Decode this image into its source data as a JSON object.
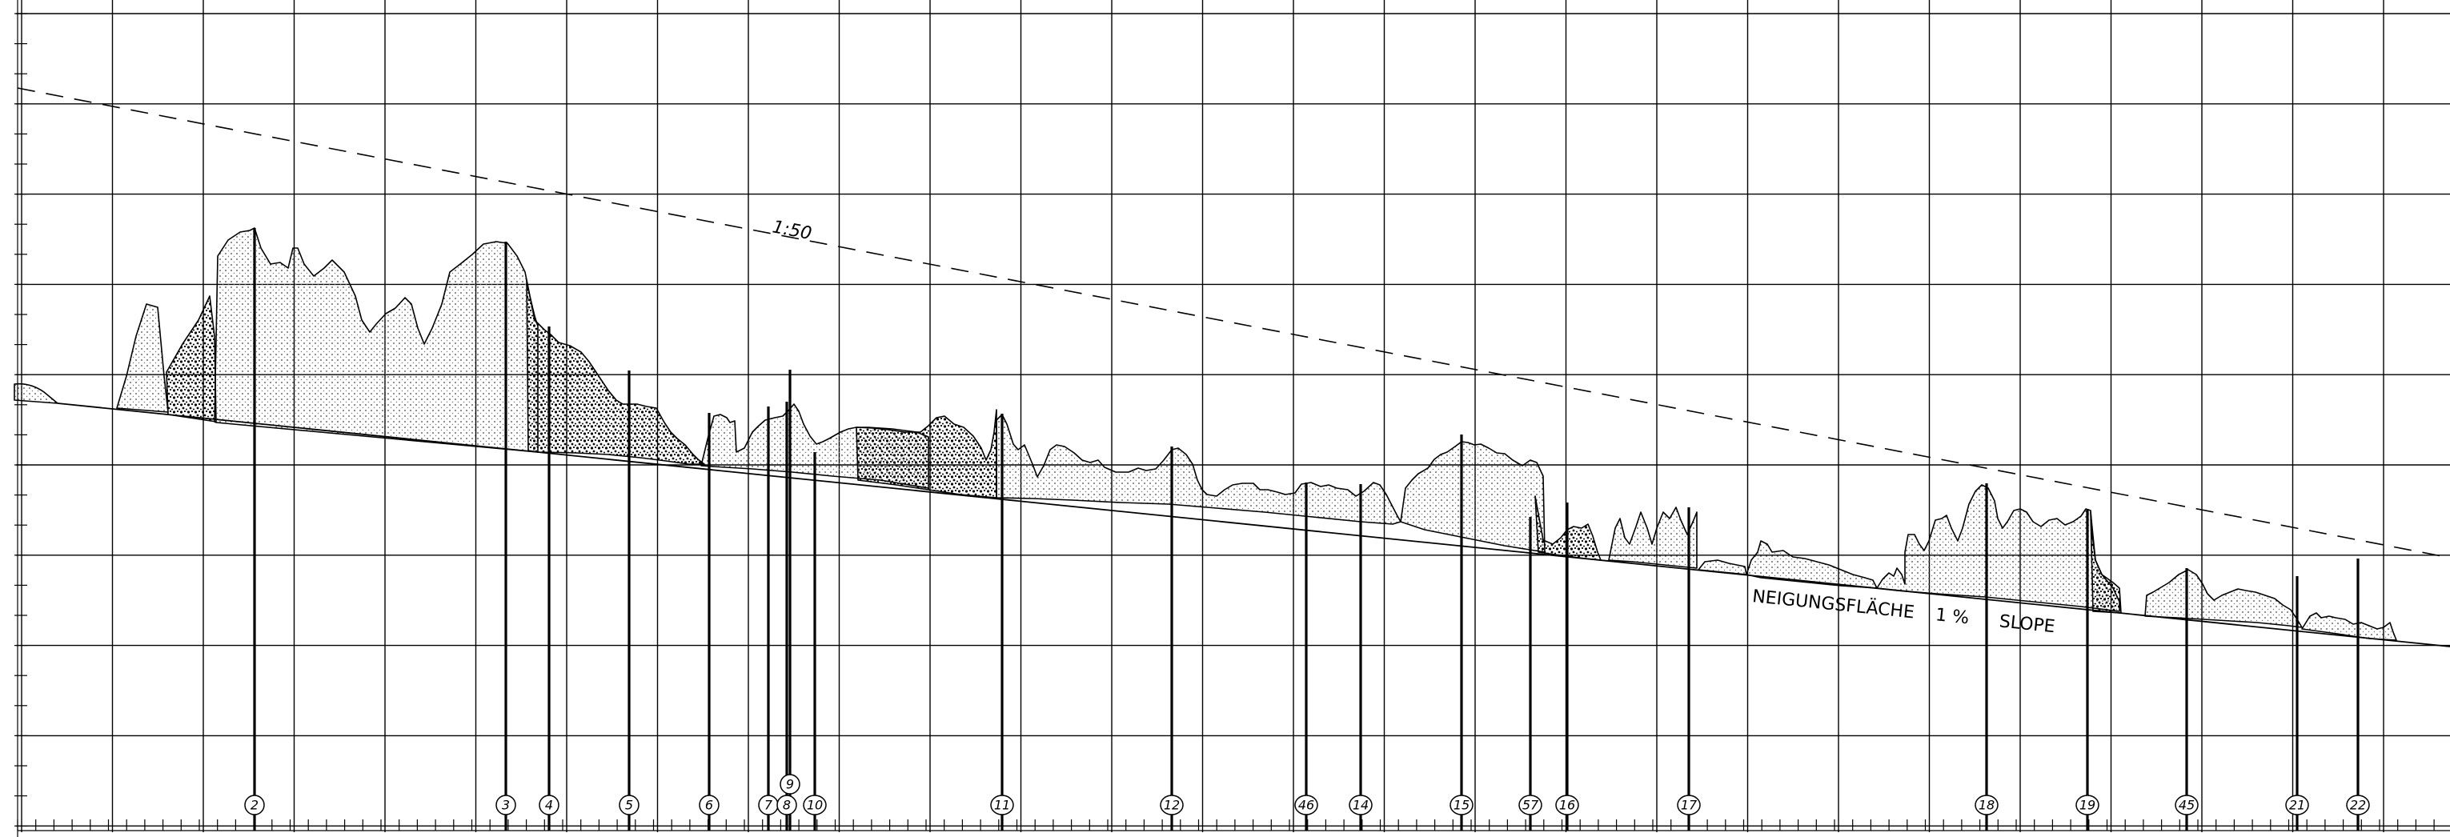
{
  "annotations": {
    "gradient_label": "1:50",
    "slope_label_de": "NEIGUNGSFLÄCHE",
    "slope_value": "1 %",
    "slope_label_en": "SLOPE"
  },
  "markers": [
    "2",
    "3",
    "4",
    "5",
    "6",
    "7",
    "8",
    "9",
    "10",
    "11",
    "12",
    "46",
    "14",
    "15",
    "57",
    "16",
    "17",
    "18",
    "19",
    "45",
    "21",
    "22"
  ]
}
